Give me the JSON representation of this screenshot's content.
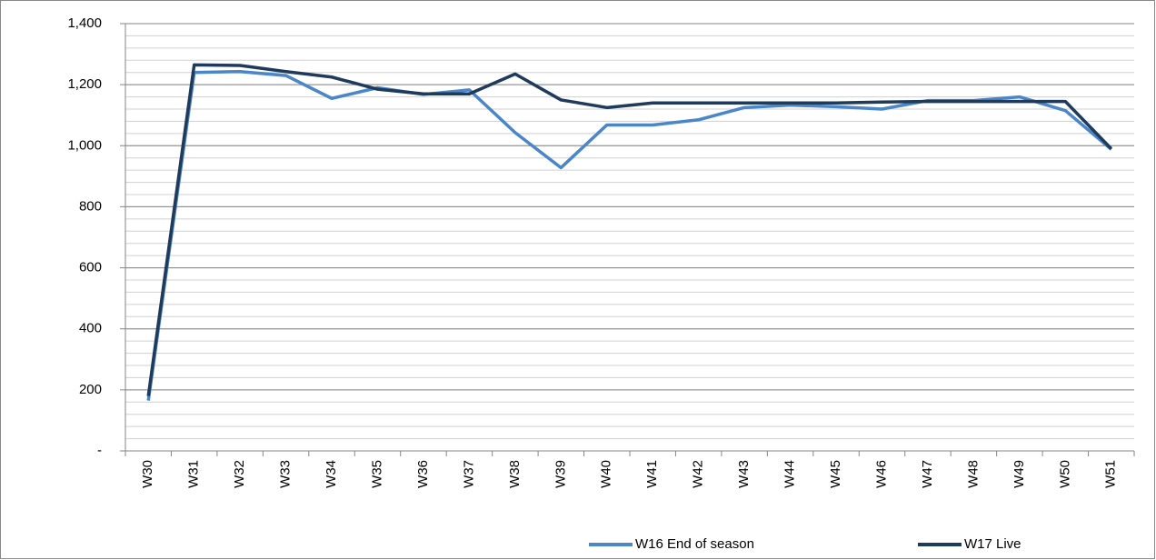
{
  "chart_data": {
    "type": "line",
    "categories": [
      "W30",
      "W31",
      "W32",
      "W33",
      "W34",
      "W35",
      "W36",
      "W37",
      "W38",
      "W39",
      "W40",
      "W41",
      "W42",
      "W43",
      "W44",
      "W45",
      "W46",
      "W47",
      "W48",
      "W49",
      "W50",
      "W51"
    ],
    "series": [
      {
        "name": "W16 End of season",
        "color": "#4a86c8",
        "values": [
          165,
          1240,
          1243,
          1230,
          1155,
          1190,
          1168,
          1183,
          1043,
          928,
          1068,
          1068,
          1085,
          1125,
          1133,
          1128,
          1120,
          1148,
          1148,
          1160,
          1115,
          988
        ]
      },
      {
        "name": "W17 Live",
        "color": "#1f3a5a",
        "values": [
          180,
          1265,
          1263,
          1243,
          1225,
          1185,
          1170,
          1170,
          1235,
          1150,
          1125,
          1140,
          1140,
          1140,
          1140,
          1140,
          1143,
          1145,
          1145,
          1145,
          1145,
          990
        ]
      }
    ],
    "ylim": [
      0,
      1400
    ],
    "yticks": [
      {
        "value": 0,
        "label": "-"
      },
      200,
      400,
      600,
      800,
      {
        "value": 1000,
        "label": "1,000"
      },
      {
        "value": 1200,
        "label": "1,200"
      },
      {
        "value": 1400,
        "label": "1,400"
      }
    ],
    "grid": true,
    "minor_grid": 40,
    "legend": "bottom"
  }
}
